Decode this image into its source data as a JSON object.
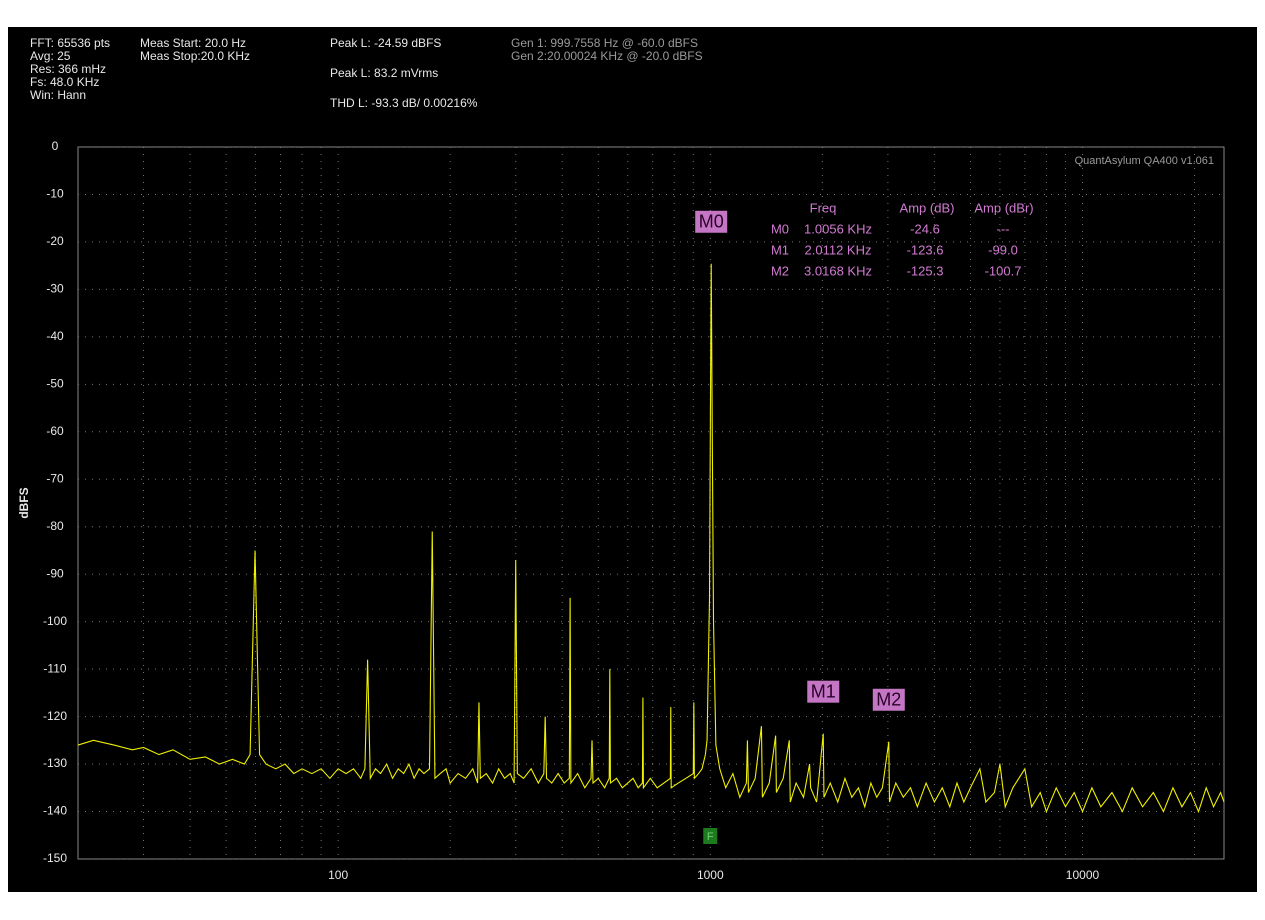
{
  "chart_data": {
    "type": "line",
    "header_left": [
      "FFT: 65536 pts",
      "Avg: 25",
      "Res: 366 mHz",
      "Fs: 48.0 KHz",
      "Win: Hann"
    ],
    "header_mid": [
      "Meas Start: 20.0 Hz",
      "Meas Stop:20.0 KHz"
    ],
    "readouts": [
      "Peak L: -24.59 dBFS",
      "Peak L: 83.2 mVrms",
      "THD L: -93.3 dB/ 0.00216%"
    ],
    "generators": [
      "Gen 1: 999.7558 Hz @ -60.0  dBFS",
      "Gen 2:20.00024 KHz @ -20.0  dBFS"
    ],
    "watermark": "QuantAsylum QA400 v1.061",
    "ylabel": "dBFS",
    "xscale": "log",
    "xlim": [
      20,
      24000
    ],
    "ylim": [
      -150,
      0
    ],
    "xticks": [
      100,
      1000,
      10000
    ],
    "xminorticks": [
      30,
      40,
      50,
      60,
      70,
      80,
      90,
      200,
      300,
      400,
      500,
      600,
      700,
      800,
      900,
      2000,
      3000,
      4000,
      5000,
      6000,
      7000,
      8000,
      9000,
      20000
    ],
    "yticks": [
      0,
      -10,
      -20,
      -30,
      -40,
      -50,
      -60,
      -70,
      -80,
      -90,
      -100,
      -110,
      -120,
      -130,
      -140,
      -150
    ],
    "grid": true,
    "x": [
      20,
      22,
      25,
      28,
      30,
      33,
      36,
      40,
      44,
      48,
      52,
      56,
      58,
      59.8,
      61.5,
      64,
      68,
      72,
      76,
      80,
      85,
      90,
      95,
      100,
      105,
      110,
      115,
      118,
      120,
      122,
      126,
      130,
      135,
      140,
      145,
      150,
      155,
      160,
      165,
      170,
      176,
      179,
      182,
      188,
      195,
      200,
      210,
      220,
      230,
      237,
      239,
      241,
      250,
      260,
      270,
      280,
      290,
      297,
      300,
      303,
      315,
      330,
      345,
      357,
      360,
      363,
      375,
      390,
      405,
      418,
      420,
      422,
      440,
      460,
      478,
      481,
      484,
      500,
      520,
      535,
      537,
      539,
      560,
      580,
      600,
      620,
      640,
      657,
      659,
      661,
      690,
      720,
      750,
      781,
      783,
      785,
      820,
      860,
      900,
      903,
      906,
      930,
      950,
      970,
      980,
      995,
      1000,
      1005.6,
      1012,
      1020,
      1035,
      1060,
      1100,
      1150,
      1200,
      1250,
      1258,
      1266,
      1320,
      1372,
      1380,
      1440,
      1498,
      1505,
      1570,
      1630,
      1640,
      1700,
      1780,
      1848,
      1860,
      1930,
      2011,
      2020,
      2100,
      2200,
      2300,
      2400,
      2500,
      2600,
      2700,
      2800,
      2900,
      3016.8,
      3030,
      3150,
      3300,
      3450,
      3600,
      3800,
      4000,
      4200,
      4400,
      4600,
      4800,
      5000,
      5300,
      5500,
      5800,
      6000,
      6200,
      6500,
      7000,
      7300,
      7700,
      8000,
      8500,
      9000,
      9500,
      10000,
      10600,
      11200,
      12000,
      12800,
      13600,
      14500,
      15500,
      16500,
      17500,
      18500,
      19500,
      20500,
      21500,
      22500,
      23500,
      24000
    ],
    "series": [
      {
        "color": "#f0f000",
        "values": [
          -126,
          -125,
          -126,
          -127,
          -126.5,
          -128,
          -127,
          -129,
          -128.5,
          -130,
          -129,
          -130,
          -128,
          -85,
          -128,
          -130,
          -131,
          -130,
          -132,
          -131,
          -132,
          -131,
          -133,
          -131,
          -132,
          -131,
          -133,
          -131,
          -108,
          -133,
          -131,
          -132,
          -130,
          -133,
          -131,
          -132,
          -130,
          -133,
          -131,
          -132,
          -131,
          -81,
          -133,
          -132,
          -131,
          -134,
          -132,
          -133,
          -131,
          -134,
          -117,
          -133,
          -132,
          -134,
          -131,
          -133,
          -132,
          -134,
          -87,
          -132,
          -133,
          -131,
          -134,
          -132,
          -120,
          -133,
          -134,
          -132,
          -134,
          -133,
          -95,
          -134,
          -132,
          -135,
          -133,
          -125,
          -134,
          -133,
          -135,
          -133,
          -110,
          -134,
          -133,
          -135,
          -134,
          -133,
          -135,
          -134,
          -116,
          -135,
          -133,
          -135,
          -134,
          -133,
          -118,
          -135,
          -134,
          -133,
          -132,
          -117,
          -133,
          -132,
          -131,
          -128,
          -125,
          -95,
          -60,
          -24.6,
          -60,
          -100,
          -126,
          -131,
          -135,
          -132,
          -137,
          -134,
          -125,
          -136,
          -133,
          -122,
          -137,
          -134,
          -124,
          -136,
          -133,
          -125,
          -138,
          -134,
          -137,
          -130,
          -135,
          -138,
          -123.6,
          -137,
          -134,
          -138,
          -133,
          -137,
          -135,
          -139,
          -134,
          -137,
          -135,
          -125.3,
          -138,
          -134,
          -137,
          -135,
          -139,
          -134,
          -138,
          -135,
          -139,
          -134,
          -138,
          -135,
          -131,
          -138,
          -136,
          -130,
          -139,
          -135,
          -131,
          -139,
          -136,
          -140,
          -135,
          -139,
          -136,
          -140,
          -135,
          -139,
          -136,
          -140,
          -135,
          -139,
          -136,
          -140,
          -135,
          -139,
          -136,
          -140,
          -135,
          -139,
          -136,
          -138
        ]
      }
    ],
    "markers": [
      {
        "label": "M0",
        "x": 1005.6,
        "y": -24.6
      },
      {
        "label": "M1",
        "x": 2011.2,
        "y": -123.6
      },
      {
        "label": "M2",
        "x": 3016.8,
        "y": -125.3
      }
    ],
    "fundamental_marker": {
      "label": "F",
      "x": 999.7558
    },
    "marker_table": {
      "columns": [
        "Freq",
        "Amp (dB)",
        "Amp (dBr)"
      ],
      "rows": [
        [
          "M0",
          "1.0056 KHz",
          "-24.6",
          "---"
        ],
        [
          "M1",
          "2.0112 KHz",
          "-123.6",
          "-99.0"
        ],
        [
          "M2",
          "3.0168 KHz",
          "-125.3",
          "-100.7"
        ]
      ]
    }
  }
}
